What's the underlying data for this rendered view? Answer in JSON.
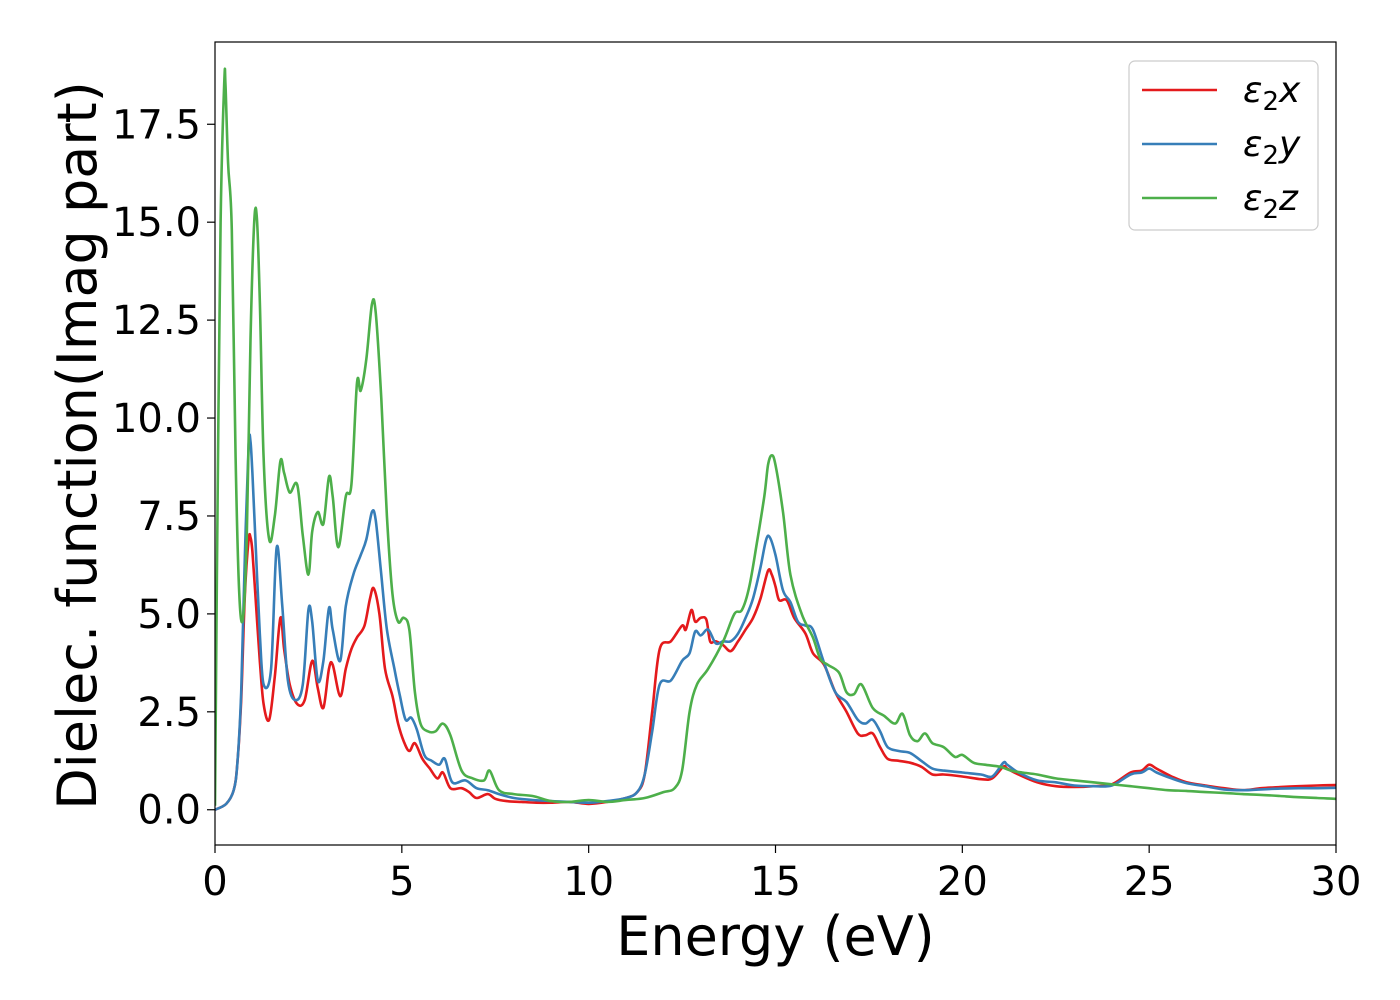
{
  "chart_data": {
    "type": "line",
    "xlabel": "Energy (eV)",
    "ylabel": "Dielec. function(Imag part)",
    "xlim": [
      0,
      30
    ],
    "ylim": [
      -0.9,
      19.6
    ],
    "xticks": [
      0,
      5,
      10,
      15,
      20,
      25,
      30
    ],
    "xtick_labels": [
      "0",
      "5",
      "10",
      "15",
      "20",
      "25",
      "30"
    ],
    "yticks": [
      0.0,
      2.5,
      5.0,
      7.5,
      10.0,
      12.5,
      15.0,
      17.5
    ],
    "ytick_labels": [
      "0.0",
      "2.5",
      "5.0",
      "7.5",
      "10.0",
      "12.5",
      "15.0",
      "17.5"
    ],
    "grid": false,
    "legend_position": "top-right",
    "series": [
      {
        "name": "ε₂x",
        "legend_base": "ε",
        "legend_sub": "2",
        "legend_var": "x",
        "color": "#e41a1c",
        "x": [
          0,
          0.3,
          0.5,
          0.6,
          0.7,
          0.8,
          0.9,
          0.95,
          1.0,
          1.1,
          1.2,
          1.3,
          1.45,
          1.6,
          1.75,
          1.85,
          2.0,
          2.2,
          2.4,
          2.6,
          2.75,
          2.9,
          3.05,
          3.15,
          3.35,
          3.5,
          3.65,
          3.8,
          4.0,
          4.15,
          4.25,
          4.4,
          4.55,
          4.75,
          4.9,
          5.05,
          5.2,
          5.35,
          5.55,
          5.75,
          5.95,
          6.1,
          6.3,
          6.6,
          6.8,
          7.0,
          7.3,
          7.5,
          7.8,
          8.2,
          8.6,
          9.0,
          9.5,
          10.0,
          10.5,
          11.0,
          11.3,
          11.5,
          11.7,
          11.9,
          12.2,
          12.5,
          12.6,
          12.75,
          12.85,
          13.0,
          13.15,
          13.25,
          13.4,
          13.6,
          13.8,
          14.0,
          14.2,
          14.4,
          14.6,
          14.8,
          14.9,
          15.0,
          15.1,
          15.3,
          15.5,
          15.8,
          16.0,
          16.3,
          16.6,
          16.9,
          17.2,
          17.4,
          17.6,
          17.8,
          18.0,
          18.3,
          18.6,
          18.9,
          19.2,
          19.5,
          20.0,
          20.5,
          20.8,
          21.1,
          21.2,
          21.5,
          22.0,
          22.5,
          23.0,
          23.5,
          24.0,
          24.5,
          24.8,
          25.0,
          25.2,
          25.6,
          26.0,
          26.5,
          27.0,
          27.5,
          28.0,
          28.5,
          29.0,
          29.5,
          30.0
        ],
        "values": [
          0,
          0.15,
          0.5,
          1.2,
          2.8,
          5.5,
          6.9,
          6.95,
          6.6,
          5.2,
          3.8,
          2.7,
          2.3,
          3.4,
          4.9,
          4.1,
          3.2,
          2.7,
          2.8,
          3.8,
          3.1,
          2.6,
          3.6,
          3.7,
          2.9,
          3.6,
          4.1,
          4.4,
          4.7,
          5.4,
          5.65,
          5.0,
          3.6,
          2.9,
          2.2,
          1.75,
          1.5,
          1.7,
          1.3,
          1.05,
          0.8,
          0.95,
          0.55,
          0.55,
          0.45,
          0.3,
          0.4,
          0.28,
          0.22,
          0.2,
          0.18,
          0.18,
          0.2,
          0.15,
          0.2,
          0.3,
          0.45,
          0.9,
          2.5,
          4.1,
          4.3,
          4.7,
          4.6,
          5.1,
          4.8,
          4.9,
          4.85,
          4.3,
          4.3,
          4.2,
          4.05,
          4.3,
          4.6,
          4.9,
          5.4,
          6.1,
          6.0,
          5.7,
          5.35,
          5.35,
          4.9,
          4.5,
          4.0,
          3.7,
          3.0,
          2.5,
          1.95,
          1.9,
          1.95,
          1.6,
          1.3,
          1.25,
          1.2,
          1.1,
          0.9,
          0.9,
          0.85,
          0.78,
          0.8,
          1.1,
          1.05,
          0.9,
          0.7,
          0.6,
          0.58,
          0.6,
          0.65,
          0.95,
          1.0,
          1.15,
          1.05,
          0.85,
          0.7,
          0.62,
          0.55,
          0.5,
          0.55,
          0.58,
          0.6,
          0.62,
          0.63
        ]
      },
      {
        "name": "ε₂y",
        "legend_base": "ε",
        "legend_sub": "2",
        "legend_var": "y",
        "color": "#377eb8",
        "x": [
          0,
          0.3,
          0.5,
          0.6,
          0.7,
          0.8,
          0.9,
          0.95,
          1.0,
          1.1,
          1.2,
          1.3,
          1.5,
          1.65,
          1.8,
          1.95,
          2.15,
          2.35,
          2.5,
          2.6,
          2.75,
          2.9,
          3.05,
          3.15,
          3.35,
          3.5,
          3.7,
          3.9,
          4.05,
          4.2,
          4.3,
          4.45,
          4.6,
          4.8,
          4.95,
          5.1,
          5.25,
          5.4,
          5.6,
          5.8,
          6.0,
          6.15,
          6.35,
          6.7,
          7.0,
          7.3,
          7.6,
          8.0,
          8.5,
          9.0,
          9.5,
          10.0,
          10.5,
          11.0,
          11.3,
          11.5,
          11.7,
          11.9,
          12.2,
          12.5,
          12.7,
          12.85,
          13.0,
          13.2,
          13.4,
          13.6,
          13.8,
          14.0,
          14.2,
          14.4,
          14.6,
          14.75,
          14.85,
          15.0,
          15.2,
          15.4,
          15.6,
          15.8,
          16.0,
          16.3,
          16.6,
          16.9,
          17.2,
          17.4,
          17.6,
          17.8,
          18.0,
          18.3,
          18.6,
          18.9,
          19.2,
          19.5,
          20.0,
          20.5,
          20.8,
          21.1,
          21.2,
          21.5,
          22.0,
          22.5,
          23.0,
          23.5,
          24.0,
          24.5,
          24.8,
          25.0,
          25.2,
          25.6,
          26.0,
          26.5,
          27.0,
          27.5,
          28.0,
          28.5,
          29.0,
          29.5,
          30.0
        ],
        "values": [
          0,
          0.15,
          0.5,
          1.2,
          3.0,
          6.5,
          9.3,
          9.4,
          8.6,
          6.5,
          4.5,
          3.2,
          3.6,
          6.7,
          5.2,
          3.3,
          2.8,
          3.2,
          5.1,
          4.8,
          3.3,
          3.8,
          5.15,
          4.6,
          3.8,
          5.2,
          6.0,
          6.5,
          6.9,
          7.6,
          7.4,
          6.0,
          4.6,
          3.6,
          2.9,
          2.3,
          2.35,
          2.05,
          1.4,
          1.25,
          1.15,
          1.3,
          0.7,
          0.75,
          0.55,
          0.5,
          0.4,
          0.3,
          0.25,
          0.22,
          0.2,
          0.18,
          0.22,
          0.3,
          0.45,
          0.9,
          2.0,
          3.2,
          3.3,
          3.8,
          4.0,
          4.55,
          4.45,
          4.6,
          4.25,
          4.3,
          4.3,
          4.5,
          4.9,
          5.4,
          6.2,
          6.9,
          6.95,
          6.5,
          5.6,
          5.3,
          4.8,
          4.7,
          4.6,
          3.75,
          3.0,
          2.75,
          2.3,
          2.2,
          2.3,
          2.0,
          1.6,
          1.5,
          1.45,
          1.25,
          1.05,
          1.0,
          0.95,
          0.9,
          0.85,
          1.2,
          1.15,
          0.95,
          0.75,
          0.7,
          0.62,
          0.6,
          0.62,
          0.9,
          0.95,
          1.05,
          0.95,
          0.8,
          0.68,
          0.6,
          0.52,
          0.5,
          0.52,
          0.54,
          0.55,
          0.55,
          0.56
        ]
      },
      {
        "name": "ε₂z",
        "legend_base": "ε",
        "legend_sub": "2",
        "legend_var": "z",
        "color": "#4daf4a",
        "x": [
          0,
          0.05,
          0.15,
          0.25,
          0.28,
          0.35,
          0.45,
          0.55,
          0.65,
          0.75,
          0.85,
          0.95,
          1.05,
          1.12,
          1.2,
          1.3,
          1.45,
          1.6,
          1.75,
          1.85,
          2.0,
          2.2,
          2.35,
          2.5,
          2.6,
          2.75,
          2.9,
          3.05,
          3.15,
          3.3,
          3.5,
          3.65,
          3.8,
          3.9,
          4.05,
          4.2,
          4.3,
          4.45,
          4.6,
          4.75,
          4.9,
          5.05,
          5.2,
          5.35,
          5.5,
          5.7,
          5.9,
          6.1,
          6.3,
          6.6,
          6.9,
          7.2,
          7.35,
          7.6,
          8.0,
          8.5,
          9.0,
          9.5,
          10.0,
          10.5,
          11.0,
          11.5,
          12.0,
          12.3,
          12.5,
          12.7,
          12.9,
          13.2,
          13.6,
          13.9,
          14.1,
          14.3,
          14.5,
          14.7,
          14.8,
          14.9,
          15.0,
          15.2,
          15.4,
          15.7,
          16.0,
          16.2,
          16.4,
          16.7,
          16.9,
          17.1,
          17.3,
          17.6,
          17.9,
          18.2,
          18.4,
          18.6,
          18.8,
          19.0,
          19.2,
          19.5,
          19.8,
          20.0,
          20.3,
          20.6,
          21.0,
          21.3,
          21.6,
          22.0,
          22.5,
          23.0,
          23.5,
          24.0,
          24.5,
          25.0,
          25.5,
          26.0,
          26.5,
          27.0,
          27.5,
          28.0,
          28.5,
          29.0,
          29.5,
          30.0
        ],
        "values": [
          0.1,
          6.0,
          15.0,
          18.6,
          18.5,
          16.5,
          14.8,
          9.0,
          5.5,
          4.9,
          7.0,
          12.0,
          15.0,
          15.1,
          13.0,
          9.0,
          6.9,
          7.5,
          8.9,
          8.6,
          8.1,
          8.3,
          7.0,
          6.0,
          7.1,
          7.6,
          7.3,
          8.5,
          8.0,
          6.7,
          8.0,
          8.3,
          10.9,
          10.7,
          11.5,
          12.9,
          12.7,
          10.5,
          7.5,
          5.5,
          4.8,
          4.9,
          4.6,
          3.0,
          2.2,
          2.0,
          2.0,
          2.2,
          1.9,
          1.0,
          0.8,
          0.75,
          1.0,
          0.5,
          0.4,
          0.35,
          0.22,
          0.2,
          0.25,
          0.2,
          0.25,
          0.3,
          0.45,
          0.55,
          1.0,
          2.5,
          3.2,
          3.6,
          4.3,
          5.0,
          5.1,
          5.7,
          6.8,
          8.0,
          8.8,
          9.05,
          8.8,
          7.6,
          6.0,
          5.0,
          4.4,
          3.85,
          3.7,
          3.5,
          3.0,
          2.95,
          3.2,
          2.6,
          2.4,
          2.2,
          2.45,
          1.9,
          1.75,
          1.95,
          1.7,
          1.6,
          1.35,
          1.4,
          1.2,
          1.15,
          1.1,
          1.0,
          0.95,
          0.9,
          0.8,
          0.75,
          0.7,
          0.65,
          0.6,
          0.55,
          0.5,
          0.48,
          0.45,
          0.43,
          0.4,
          0.38,
          0.35,
          0.32,
          0.3,
          0.28
        ]
      }
    ]
  }
}
